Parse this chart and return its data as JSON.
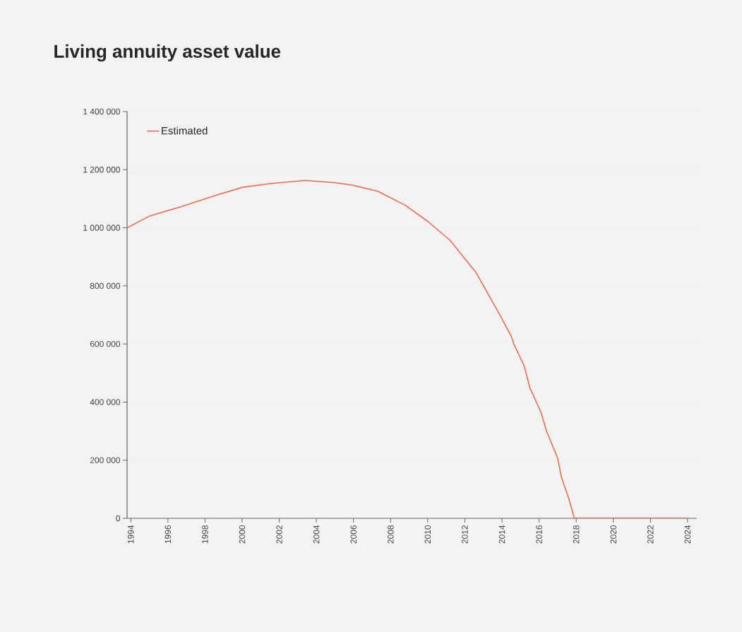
{
  "chart_data": {
    "type": "line",
    "title": "Living annuity asset value",
    "x": [
      1993.8,
      1995,
      1996.8,
      1998.5,
      2000,
      2001.5,
      2003.4,
      2005,
      2005.9,
      2007.3,
      2008.8,
      2010,
      2011.2,
      2012.6,
      2013.8,
      2014.5,
      2014.65,
      2015.2,
      2015.5,
      2016.1,
      2016.4,
      2017,
      2017.2,
      2017.6,
      2017.9,
      2019,
      2020,
      2021,
      2022,
      2023,
      2024
    ],
    "series": [
      {
        "name": "Estimated",
        "color": "#ee6c4d",
        "values": [
          1000000,
          1040000,
          1074000,
          1110000,
          1139000,
          1152000,
          1163000,
          1155000,
          1147000,
          1126000,
          1077000,
          1022000,
          957000,
          846000,
          710000,
          627000,
          598000,
          524000,
          450000,
          365000,
          300000,
          207000,
          142000,
          68000,
          0,
          0,
          0,
          0,
          0,
          0,
          0
        ]
      }
    ],
    "xlim": [
      1993.8,
      2024.5
    ],
    "xticks": [
      1994,
      1996,
      1998,
      2000,
      2002,
      2004,
      2006,
      2008,
      2010,
      2012,
      2014,
      2016,
      2018,
      2020,
      2022,
      2024
    ],
    "ylim": [
      0,
      1400000
    ],
    "yticks": [
      {
        "value": 0,
        "label": "0"
      },
      {
        "value": 200000,
        "label": "200 000"
      },
      {
        "value": 400000,
        "label": "400 000"
      },
      {
        "value": 600000,
        "label": "600 000"
      },
      {
        "value": 800000,
        "label": "800 000"
      },
      {
        "value": 1000000,
        "label": "1 000 000"
      },
      {
        "value": 1200000,
        "label": "1 200 000"
      },
      {
        "value": 1400000,
        "label": "1 400 000"
      }
    ],
    "grid": "y",
    "legend": "top left",
    "marker": "none",
    "line_style": "solid"
  }
}
